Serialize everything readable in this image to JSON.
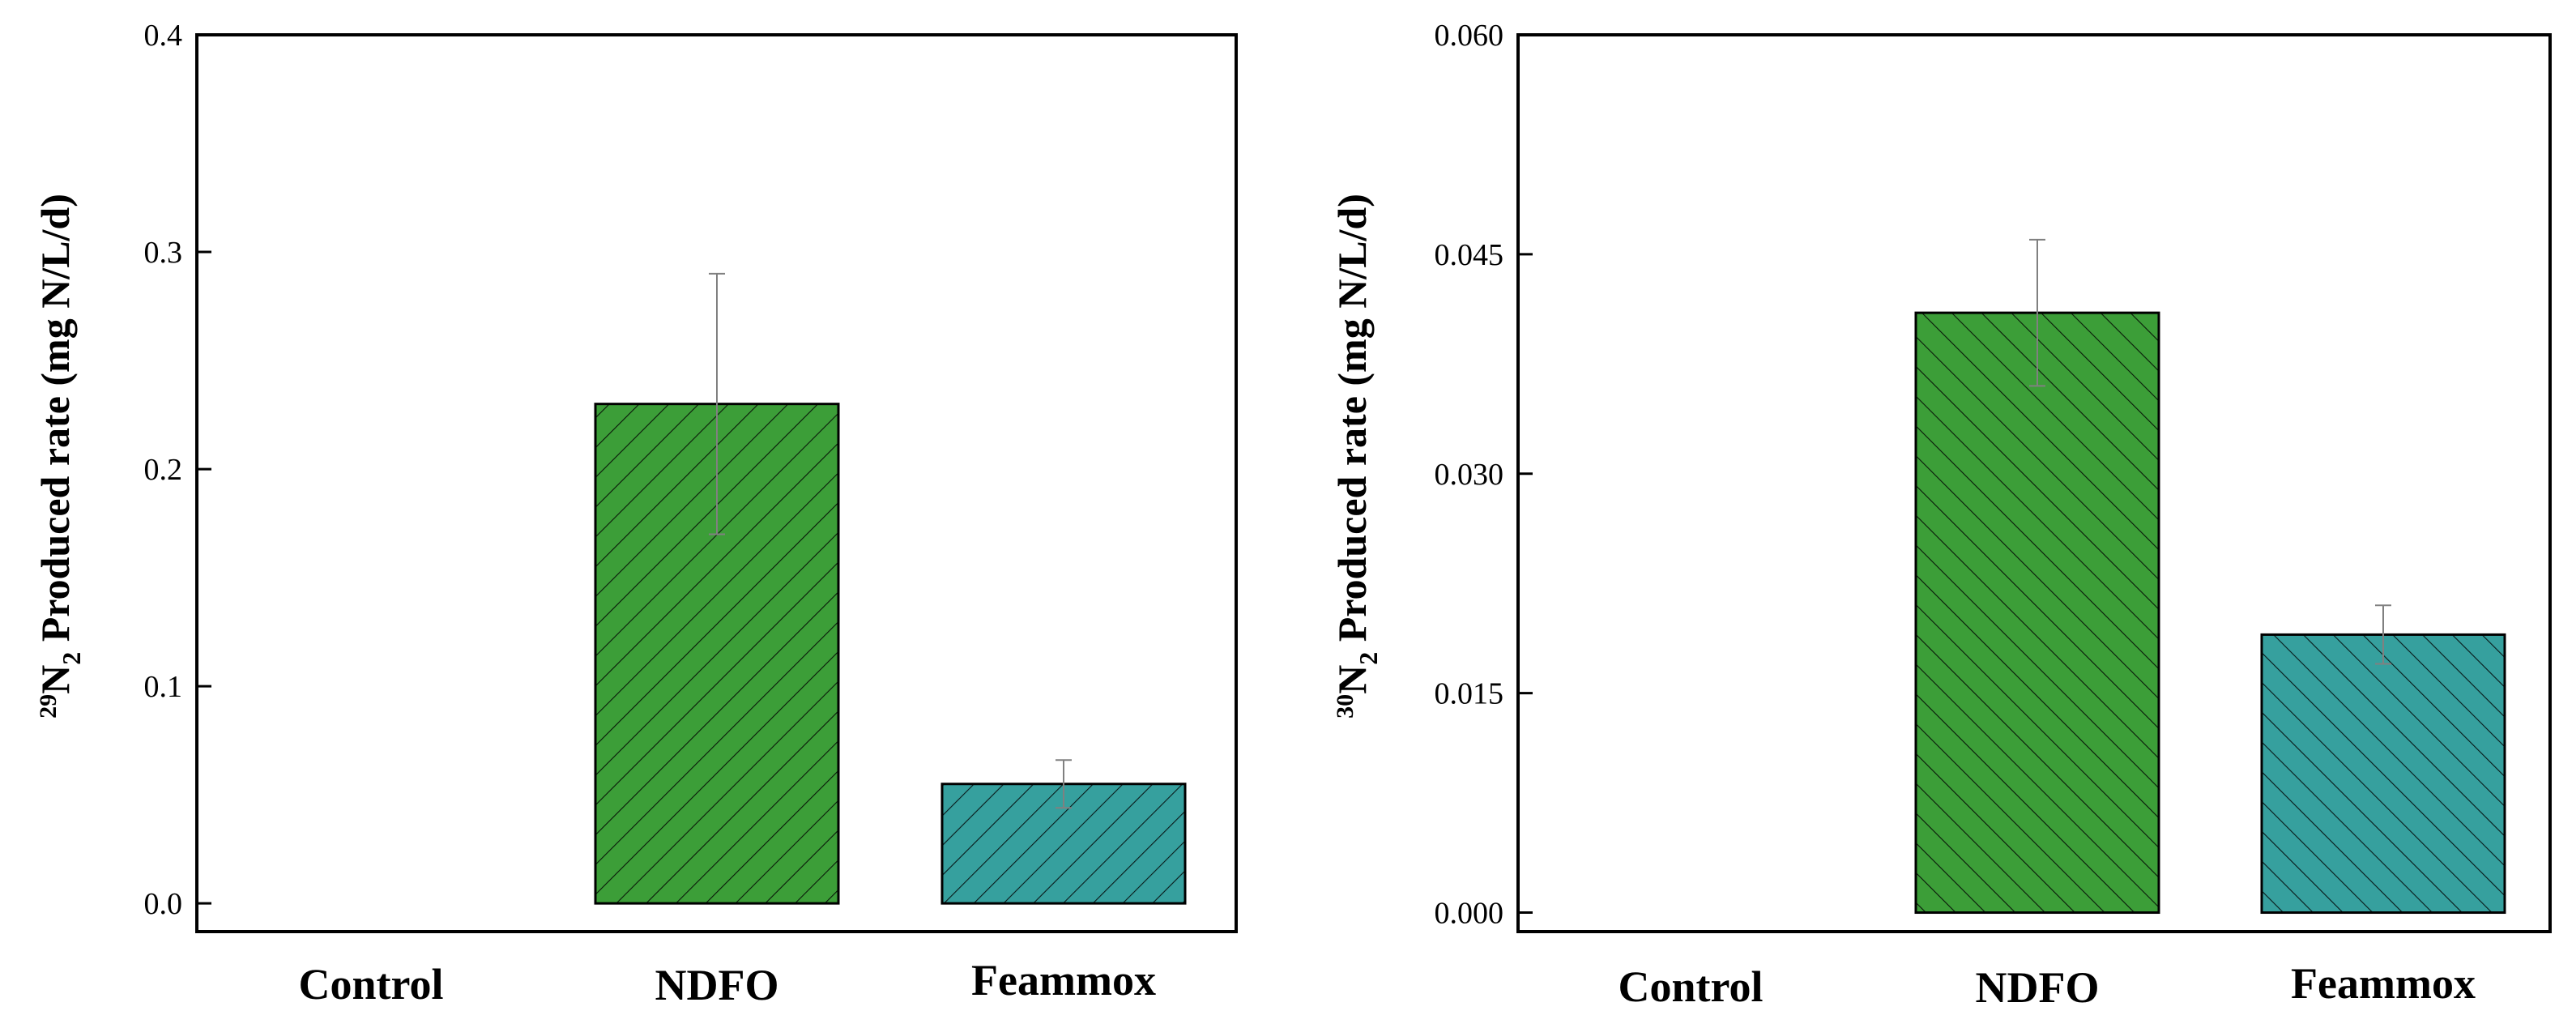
{
  "colors": {
    "control": "#a83a3b",
    "ndfo": "#3c9e38",
    "feammox": "#36a09e",
    "axis": "#000000",
    "errorbar": "#808080"
  },
  "chart_data": [
    {
      "type": "bar",
      "categories": [
        "Control",
        "NDFO",
        "Feammox"
      ],
      "values": [
        0.0,
        0.23,
        0.055
      ],
      "errors": [
        0.0,
        0.06,
        0.011
      ],
      "ylim": [
        -0.013,
        0.4
      ],
      "yticks": [
        0.0,
        0.1,
        0.2,
        0.3,
        0.4
      ],
      "ytick_labels": [
        "0.0",
        "0.1",
        "0.2",
        "0.3",
        "0.4"
      ],
      "ylabel": {
        "sup": "29",
        "pre": "N",
        "sub": "2",
        "rest": " Produced rate (mg N/L/d)"
      },
      "hatch": "forward"
    },
    {
      "type": "bar",
      "categories": [
        "Control",
        "NDFO",
        "Feammox"
      ],
      "values": [
        0.0,
        0.041,
        0.019
      ],
      "errors": [
        0.0,
        0.005,
        0.002
      ],
      "ylim": [
        -0.0013,
        0.06
      ],
      "yticks": [
        0.0,
        0.015,
        0.03,
        0.045,
        0.06
      ],
      "ytick_labels": [
        "0.000",
        "0.015",
        "0.030",
        "0.045",
        "0.060"
      ],
      "ylabel": {
        "sup": "30",
        "pre": "N",
        "sub": "2",
        "rest": " Produced rate (mg N/L/d)"
      },
      "hatch": "back"
    }
  ]
}
